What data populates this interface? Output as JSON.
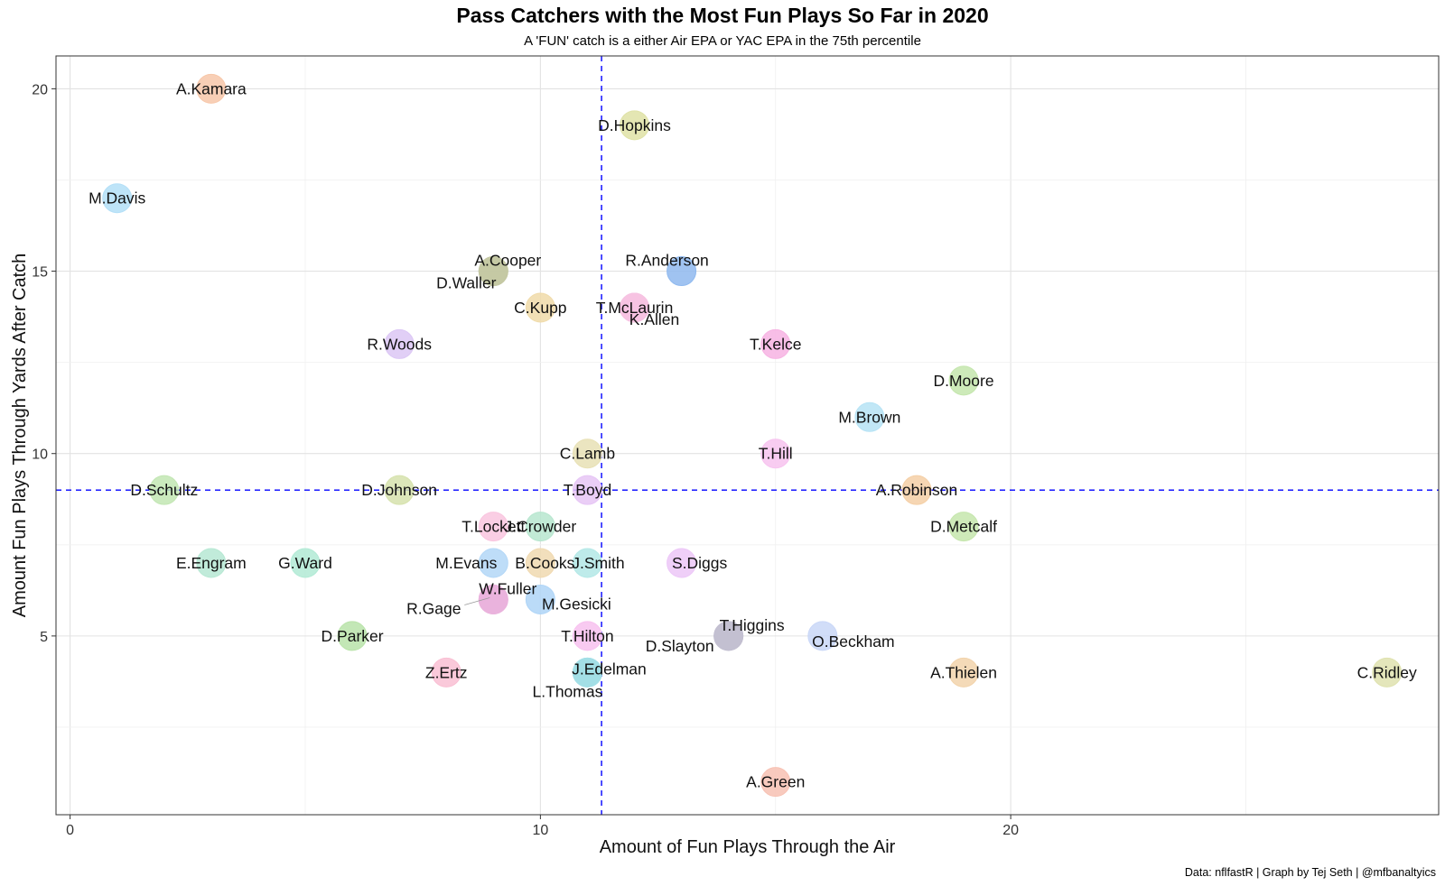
{
  "chart_data": {
    "type": "scatter",
    "title": "Pass Catchers with the Most Fun Plays So Far in 2020",
    "subtitle": "A 'FUN' catch is a either Air EPA or YAC EPA in the 75th percentile",
    "xlabel": "Amount of Fun Plays Through the Air",
    "ylabel": "Amount Fun Plays Through Yards After Catch",
    "caption": "Data: nflfastR | Graph by Tej Seth | @mfbanaltyics",
    "xlim": [
      -0.3,
      29.1
    ],
    "ylim": [
      0.1,
      20.9
    ],
    "x_ticks": [
      0,
      10,
      20
    ],
    "y_ticks": [
      5,
      10,
      15,
      20
    ],
    "grid": true,
    "reference_lines": {
      "x": 11.3,
      "y": 9,
      "color": "#0000ff",
      "style": "dashed"
    },
    "points": [
      {
        "name": "A.Kamara",
        "x": 3,
        "y": 20,
        "color": "#f7c7a9"
      },
      {
        "name": "D.Hopkins",
        "x": 12,
        "y": 19,
        "color": "#dfe2a6"
      },
      {
        "name": "M.Davis",
        "x": 1,
        "y": 17,
        "color": "#b3dff7"
      },
      {
        "name": "A.Cooper",
        "x": 9,
        "y": 15,
        "color": "#b4c3a1"
      },
      {
        "name": "D.Waller",
        "x": 9,
        "y": 15,
        "color": "#c5c8a2"
      },
      {
        "name": "R.Anderson",
        "x": 13,
        "y": 15,
        "color": "#8fb9ef"
      },
      {
        "name": "C.Kupp",
        "x": 10,
        "y": 14,
        "color": "#f0dba9"
      },
      {
        "name": "K.Allen",
        "x": 12,
        "y": 14,
        "color": "#f9b8d9"
      },
      {
        "name": "T.McLaurin",
        "x": 12,
        "y": 14,
        "color": "#f6c3e3"
      },
      {
        "name": "R.Woods",
        "x": 7,
        "y": 13,
        "color": "#dcc7f5"
      },
      {
        "name": "T.Kelce",
        "x": 15,
        "y": 13,
        "color": "#f7b3e3"
      },
      {
        "name": "D.Moore",
        "x": 19,
        "y": 12,
        "color": "#c4e6ad"
      },
      {
        "name": "M.Brown",
        "x": 17,
        "y": 11,
        "color": "#b6e3f5"
      },
      {
        "name": "C.Lamb",
        "x": 11,
        "y": 10,
        "color": "#e8e1b5"
      },
      {
        "name": "T.Hill",
        "x": 15,
        "y": 10,
        "color": "#f7c3ef"
      },
      {
        "name": "D.Schultz",
        "x": 2,
        "y": 9,
        "color": "#c2e6b3"
      },
      {
        "name": "D.Johnson",
        "x": 7,
        "y": 9,
        "color": "#d6e2ad"
      },
      {
        "name": "T.Boyd",
        "x": 11,
        "y": 9,
        "color": "#e6c5f5"
      },
      {
        "name": "A.Robinson",
        "x": 18,
        "y": 9,
        "color": "#f4cfa6"
      },
      {
        "name": "T.Lockett",
        "x": 9,
        "y": 8,
        "color": "#f9c5df"
      },
      {
        "name": "J.Crowder",
        "x": 10,
        "y": 8,
        "color": "#b7e6cf"
      },
      {
        "name": "D.Metcalf",
        "x": 19,
        "y": 8,
        "color": "#c6e6ad"
      },
      {
        "name": "E.Engram",
        "x": 3,
        "y": 7,
        "color": "#b6e8d3"
      },
      {
        "name": "G.Ward",
        "x": 5,
        "y": 7,
        "color": "#b1ead5"
      },
      {
        "name": "M.Evans",
        "x": 9,
        "y": 7,
        "color": "#b3d7f7"
      },
      {
        "name": "B.Cooks",
        "x": 10,
        "y": 7,
        "color": "#f0d9b0"
      },
      {
        "name": "J.Smith",
        "x": 11,
        "y": 7,
        "color": "#b3e8e6"
      },
      {
        "name": "S.Diggs",
        "x": 13,
        "y": 7,
        "color": "#ecc7f7"
      },
      {
        "name": "W.Fuller",
        "x": 9,
        "y": 6,
        "color": "#e8a9d6"
      },
      {
        "name": "R.Gage",
        "x": 9,
        "y": 6,
        "color": "#eab3dd"
      },
      {
        "name": "M.Gesicki",
        "x": 10,
        "y": 6,
        "color": "#afd5f7"
      },
      {
        "name": "D.Parker",
        "x": 6,
        "y": 5,
        "color": "#b9e3a9"
      },
      {
        "name": "T.Hilton",
        "x": 11,
        "y": 5,
        "color": "#f7c1ef"
      },
      {
        "name": "T.Higgins",
        "x": 14,
        "y": 5,
        "color": "#b9b9c9"
      },
      {
        "name": "D.Slayton",
        "x": 14,
        "y": 5,
        "color": "#c3bfd1"
      },
      {
        "name": "O.Beckham",
        "x": 16,
        "y": 5,
        "color": "#c9d7f7"
      },
      {
        "name": "Z.Ertz",
        "x": 8,
        "y": 4,
        "color": "#f9bfd3"
      },
      {
        "name": "J.Edelman",
        "x": 11,
        "y": 4,
        "color": "#8fd6e0"
      },
      {
        "name": "L.Thomas",
        "x": 11,
        "y": 4,
        "color": "#a3dfe6"
      },
      {
        "name": "A.Thielen",
        "x": 19,
        "y": 4,
        "color": "#f2d3ab"
      },
      {
        "name": "C.Ridley",
        "x": 28,
        "y": 4,
        "color": "#dfe2af"
      },
      {
        "name": "A.Green",
        "x": 15,
        "y": 1,
        "color": "#f7c1b3"
      }
    ]
  }
}
